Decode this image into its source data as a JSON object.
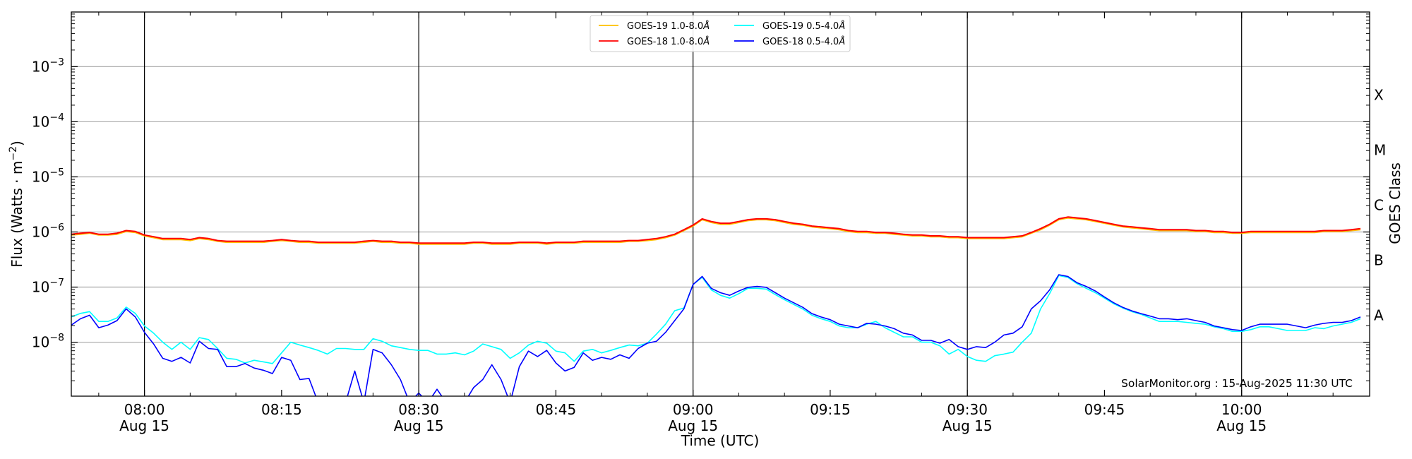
{
  "chart_data": {
    "type": "line",
    "title": "",
    "xlabel": "Time (UTC)",
    "ylabel": "Flux (Watts · m",
    "ylabel_sup": "−2",
    "ylabel_close": ")",
    "right_label": "GOES Class",
    "yscale": "log",
    "ylim": [
      1.05e-09,
      0.0098
    ],
    "xlim": [
      "07:52",
      "10:14"
    ],
    "grid": "horizontal at decades; vertical lines at 30-minute marks",
    "legend_placement": "top-center",
    "y_ticks": [
      {
        "value": 0.001,
        "base": "10",
        "exp": "−3"
      },
      {
        "value": 0.0001,
        "base": "10",
        "exp": "−4"
      },
      {
        "value": 1e-05,
        "base": "10",
        "exp": "−5"
      },
      {
        "value": 1e-06,
        "base": "10",
        "exp": "−6"
      },
      {
        "value": 1e-07,
        "base": "10",
        "exp": "−7"
      },
      {
        "value": 1e-08,
        "base": "10",
        "exp": "−8"
      }
    ],
    "x_ticks": [
      {
        "time": "08:00",
        "date": "Aug 15"
      },
      {
        "time": "08:15",
        "date": ""
      },
      {
        "time": "08:30",
        "date": "Aug 15"
      },
      {
        "time": "08:45",
        "date": ""
      },
      {
        "time": "09:00",
        "date": "Aug 15"
      },
      {
        "time": "09:15",
        "date": ""
      },
      {
        "time": "09:30",
        "date": "Aug 15"
      },
      {
        "time": "09:45",
        "date": ""
      },
      {
        "time": "10:00",
        "date": "Aug 15"
      }
    ],
    "goes_classes": [
      {
        "label": "X",
        "value": 0.0001
      },
      {
        "label": "M",
        "value": 1e-05
      },
      {
        "label": "C",
        "value": 1e-06
      },
      {
        "label": "B",
        "value": 1e-07
      },
      {
        "label": "A",
        "value": 1e-08
      }
    ],
    "annotation": "SolarMonitor.org : 15-Aug-2025 11:30 UTC",
    "x": [
      "07:52",
      "07:53",
      "07:54",
      "07:55",
      "07:56",
      "07:57",
      "07:58",
      "07:59",
      "08:00",
      "08:01",
      "08:02",
      "08:03",
      "08:04",
      "08:05",
      "08:06",
      "08:07",
      "08:08",
      "08:09",
      "08:10",
      "08:11",
      "08:12",
      "08:13",
      "08:14",
      "08:15",
      "08:16",
      "08:17",
      "08:18",
      "08:19",
      "08:20",
      "08:21",
      "08:22",
      "08:23",
      "08:24",
      "08:25",
      "08:26",
      "08:27",
      "08:28",
      "08:29",
      "08:30",
      "08:31",
      "08:32",
      "08:33",
      "08:34",
      "08:35",
      "08:36",
      "08:37",
      "08:38",
      "08:39",
      "08:40",
      "08:41",
      "08:42",
      "08:43",
      "08:44",
      "08:45",
      "08:46",
      "08:47",
      "08:48",
      "08:49",
      "08:50",
      "08:51",
      "08:52",
      "08:53",
      "08:54",
      "08:55",
      "08:56",
      "08:57",
      "08:58",
      "08:59",
      "09:00",
      "09:01",
      "09:02",
      "09:03",
      "09:04",
      "09:05",
      "09:06",
      "09:07",
      "09:08",
      "09:09",
      "09:10",
      "09:11",
      "09:12",
      "09:13",
      "09:14",
      "09:15",
      "09:16",
      "09:17",
      "09:18",
      "09:19",
      "09:20",
      "09:21",
      "09:22",
      "09:23",
      "09:24",
      "09:25",
      "09:26",
      "09:27",
      "09:28",
      "09:29",
      "09:30",
      "09:31",
      "09:32",
      "09:33",
      "09:34",
      "09:35",
      "09:36",
      "09:37",
      "09:38",
      "09:39",
      "09:40",
      "09:41",
      "09:42",
      "09:43",
      "09:44",
      "09:45",
      "09:46",
      "09:47",
      "09:48",
      "09:49",
      "09:50",
      "09:51",
      "09:52",
      "09:53",
      "09:54",
      "09:55",
      "09:56",
      "09:57",
      "09:58",
      "09:59",
      "10:00",
      "10:01",
      "10:02",
      "10:03",
      "10:04",
      "10:05",
      "10:06",
      "10:07",
      "10:08",
      "10:09",
      "10:10",
      "10:11",
      "10:12",
      "10:13"
    ],
    "series": [
      {
        "name": "GOES-19 1.0-8.0Å",
        "label_main": "GOES-19 1.0-8.0",
        "label_unit": "Å",
        "color": "#ffc000",
        "values": [
          8.8e-07,
          9.1e-07,
          9.5e-07,
          8.8e-07,
          8.8e-07,
          9.1e-07,
          1.02e-06,
          9.8e-07,
          8.5e-07,
          7.9e-07,
          7.3e-07,
          7.3e-07,
          7.3e-07,
          7e-07,
          7.6e-07,
          7.3e-07,
          6.8e-07,
          6.5e-07,
          6.5e-07,
          6.5e-07,
          6.5e-07,
          6.5e-07,
          6.8e-07,
          7e-07,
          6.8e-07,
          6.5e-07,
          6.5e-07,
          6.3e-07,
          6.3e-07,
          6.3e-07,
          6.3e-07,
          6.3e-07,
          6.5e-07,
          6.8e-07,
          6.5e-07,
          6.5e-07,
          6.3e-07,
          6.3e-07,
          6e-07,
          6e-07,
          6e-07,
          6e-07,
          6e-07,
          6e-07,
          6.3e-07,
          6.3e-07,
          6e-07,
          6e-07,
          6e-07,
          6.3e-07,
          6.3e-07,
          6.3e-07,
          6e-07,
          6.3e-07,
          6.3e-07,
          6.3e-07,
          6.5e-07,
          6.5e-07,
          6.5e-07,
          6.5e-07,
          6.5e-07,
          6.8e-07,
          6.8e-07,
          7e-07,
          7.3e-07,
          7.9e-07,
          8.8e-07,
          1.06e-06,
          1.28e-06,
          1.67e-06,
          1.49e-06,
          1.38e-06,
          1.38e-06,
          1.49e-06,
          1.61e-06,
          1.67e-06,
          1.67e-06,
          1.61e-06,
          1.49e-06,
          1.38e-06,
          1.33e-06,
          1.24e-06,
          1.19e-06,
          1.15e-06,
          1.1e-06,
          1.02e-06,
          9.8e-07,
          9.8e-07,
          9.5e-07,
          9.5e-07,
          9.1e-07,
          8.8e-07,
          8.5e-07,
          8.5e-07,
          8.2e-07,
          8.2e-07,
          7.9e-07,
          7.9e-07,
          7.6e-07,
          7.6e-07,
          7.6e-07,
          7.6e-07,
          7.6e-07,
          7.9e-07,
          8.2e-07,
          9.5e-07,
          1.1e-06,
          1.33e-06,
          1.67e-06,
          1.8e-06,
          1.73e-06,
          1.67e-06,
          1.55e-06,
          1.44e-06,
          1.33e-06,
          1.24e-06,
          1.19e-06,
          1.15e-06,
          1.1e-06,
          1.06e-06,
          1.06e-06,
          1.06e-06,
          1.06e-06,
          1.02e-06,
          1.02e-06,
          9.8e-07,
          9.8e-07,
          9.5e-07,
          9.5e-07,
          9.8e-07,
          9.8e-07,
          9.8e-07,
          9.8e-07,
          9.8e-07,
          9.8e-07,
          9.8e-07,
          9.8e-07,
          1.02e-06,
          1.02e-06,
          1.02e-06,
          1.06e-06,
          1.1e-06
        ]
      },
      {
        "name": "GOES-18 1.0-8.0Å",
        "label_main": "GOES-18 1.0-8.0",
        "label_unit": "Å",
        "color": "#ff0000",
        "values": [
          9.1e-07,
          9.5e-07,
          9.8e-07,
          9.1e-07,
          9.1e-07,
          9.5e-07,
          1.06e-06,
          1.02e-06,
          8.8e-07,
          8.2e-07,
          7.6e-07,
          7.6e-07,
          7.6e-07,
          7.3e-07,
          7.9e-07,
          7.6e-07,
          7e-07,
          6.8e-07,
          6.8e-07,
          6.8e-07,
          6.8e-07,
          6.8e-07,
          7e-07,
          7.3e-07,
          7e-07,
          6.8e-07,
          6.8e-07,
          6.5e-07,
          6.5e-07,
          6.5e-07,
          6.5e-07,
          6.5e-07,
          6.8e-07,
          7e-07,
          6.8e-07,
          6.8e-07,
          6.5e-07,
          6.5e-07,
          6.3e-07,
          6.3e-07,
          6.3e-07,
          6.3e-07,
          6.3e-07,
          6.3e-07,
          6.5e-07,
          6.5e-07,
          6.3e-07,
          6.3e-07,
          6.3e-07,
          6.5e-07,
          6.5e-07,
          6.5e-07,
          6.3e-07,
          6.5e-07,
          6.5e-07,
          6.5e-07,
          6.8e-07,
          6.8e-07,
          6.8e-07,
          6.8e-07,
          6.8e-07,
          7e-07,
          7e-07,
          7.3e-07,
          7.6e-07,
          8.2e-07,
          9.1e-07,
          1.1e-06,
          1.33e-06,
          1.73e-06,
          1.55e-06,
          1.44e-06,
          1.44e-06,
          1.55e-06,
          1.67e-06,
          1.73e-06,
          1.73e-06,
          1.67e-06,
          1.55e-06,
          1.44e-06,
          1.38e-06,
          1.28e-06,
          1.24e-06,
          1.19e-06,
          1.15e-06,
          1.06e-06,
          1.02e-06,
          1.02e-06,
          9.8e-07,
          9.8e-07,
          9.5e-07,
          9.1e-07,
          8.8e-07,
          8.8e-07,
          8.5e-07,
          8.5e-07,
          8.2e-07,
          8.2e-07,
          7.9e-07,
          7.9e-07,
          7.9e-07,
          7.9e-07,
          7.9e-07,
          8.2e-07,
          8.5e-07,
          9.8e-07,
          1.15e-06,
          1.38e-06,
          1.73e-06,
          1.87e-06,
          1.8e-06,
          1.73e-06,
          1.61e-06,
          1.49e-06,
          1.38e-06,
          1.28e-06,
          1.24e-06,
          1.19e-06,
          1.15e-06,
          1.1e-06,
          1.1e-06,
          1.1e-06,
          1.1e-06,
          1.06e-06,
          1.06e-06,
          1.02e-06,
          1.02e-06,
          9.8e-07,
          9.8e-07,
          1.02e-06,
          1.02e-06,
          1.02e-06,
          1.02e-06,
          1.02e-06,
          1.02e-06,
          1.02e-06,
          1.02e-06,
          1.06e-06,
          1.06e-06,
          1.06e-06,
          1.1e-06,
          1.15e-06
        ]
      },
      {
        "name": "GOES-19 0.5-4.0Å",
        "label_main": "GOES-19 0.5-4.0",
        "label_unit": "Å",
        "color": "#00ffff",
        "values": [
          2.87e-08,
          3.33e-08,
          3.59e-08,
          2.38e-08,
          2.38e-08,
          2.76e-08,
          4.33e-08,
          3.33e-08,
          1.97e-08,
          1.46e-08,
          1e-08,
          7.4e-09,
          1e-08,
          7.4e-09,
          1.21e-08,
          1.12e-08,
          7.7e-09,
          5.1e-09,
          4.9e-09,
          4.2e-09,
          4.7e-09,
          4.4e-09,
          4.1e-09,
          6.4e-09,
          1e-08,
          8.9e-09,
          8e-09,
          7.1e-09,
          6.1e-09,
          7.7e-09,
          7.7e-09,
          7.4e-09,
          7.4e-09,
          1.16e-08,
          1.04e-08,
          8.6e-09,
          8e-09,
          7.4e-09,
          7.1e-09,
          7.1e-09,
          6.1e-09,
          6.1e-09,
          6.4e-09,
          5.9e-09,
          6.9e-09,
          9.3e-09,
          8.3e-09,
          7.4e-09,
          5.1e-09,
          6.4e-09,
          8.9e-09,
          1.04e-08,
          9.6e-09,
          6.9e-09,
          6.4e-09,
          4.5e-09,
          6.9e-09,
          7.4e-09,
          6.4e-09,
          7.1e-09,
          8e-09,
          8.9e-09,
          8.6e-09,
          9.6e-09,
          1.4e-08,
          2.12e-08,
          3.73e-08,
          4.17e-08,
          1.11e-07,
          1.5e-07,
          8.9e-08,
          7.1e-08,
          6.3e-08,
          7.6e-08,
          9.5e-08,
          9.5e-08,
          9.2e-08,
          7.3e-08,
          5.9e-08,
          4.85e-08,
          4e-08,
          3.09e-08,
          2.66e-08,
          2.38e-08,
          1.97e-08,
          1.83e-08,
          1.83e-08,
          2.12e-08,
          2.38e-08,
          1.83e-08,
          1.51e-08,
          1.25e-08,
          1.25e-08,
          1e-08,
          1e-08,
          8.6e-09,
          6.1e-09,
          7.4e-09,
          5.5e-09,
          4.7e-09,
          4.5e-09,
          5.7e-09,
          6.1e-09,
          6.6e-09,
          1e-08,
          1.46e-08,
          4e-08,
          7.6e-08,
          1.62e-07,
          1.5e-07,
          1.15e-07,
          9.5e-08,
          7.9e-08,
          6.3e-08,
          5e-08,
          4.17e-08,
          3.59e-08,
          3.21e-08,
          2.76e-08,
          2.38e-08,
          2.38e-08,
          2.38e-08,
          2.29e-08,
          2.2e-08,
          2.12e-08,
          1.9e-08,
          1.76e-08,
          1.57e-08,
          1.57e-08,
          1.69e-08,
          1.9e-08,
          1.9e-08,
          1.76e-08,
          1.63e-08,
          1.63e-08,
          1.63e-08,
          1.83e-08,
          1.76e-08,
          1.97e-08,
          2.12e-08,
          2.29e-08,
          2.66e-08
        ]
      },
      {
        "name": "GOES-18 0.5-4.0Å",
        "label_main": "GOES-18 0.5-4.0",
        "label_unit": "Å",
        "color": "#0000ff",
        "values": [
          2.04e-08,
          2.66e-08,
          3.09e-08,
          1.83e-08,
          2.04e-08,
          2.47e-08,
          4.02e-08,
          2.87e-08,
          1.51e-08,
          9.3e-09,
          5.1e-09,
          4.5e-09,
          5.3e-09,
          4.2e-09,
          1.04e-08,
          7.7e-09,
          7.4e-09,
          3.6e-09,
          3.6e-09,
          4.1e-09,
          3.4e-09,
          3.1e-09,
          2.7e-09,
          5.3e-09,
          4.7e-09,
          2.1e-09,
          2.2e-09,
          8e-10,
          8e-10,
          8e-10,
          8e-10,
          3e-09,
          8e-10,
          7.4e-09,
          6.4e-09,
          3.9e-09,
          2.1e-09,
          8e-10,
          1.2e-09,
          8e-10,
          1.4e-09,
          8e-10,
          8e-10,
          8e-10,
          1.5e-09,
          2.1e-09,
          3.9e-09,
          2.1e-09,
          8e-10,
          3.6e-09,
          6.9e-09,
          5.5e-09,
          7.1e-09,
          4.2e-09,
          3e-09,
          3.5e-09,
          6.4e-09,
          4.7e-09,
          5.3e-09,
          4.9e-09,
          5.9e-09,
          5.1e-09,
          7.7e-09,
          9.6e-09,
          1.04e-08,
          1.51e-08,
          2.47e-08,
          4.02e-08,
          1.11e-07,
          1.56e-07,
          9.5e-08,
          7.9e-08,
          7.1e-08,
          8.5e-08,
          9.9e-08,
          1.03e-07,
          9.9e-08,
          7.9e-08,
          6.3e-08,
          5.2e-08,
          4.3e-08,
          3.3e-08,
          2.87e-08,
          2.56e-08,
          2.12e-08,
          1.97e-08,
          1.83e-08,
          2.2e-08,
          2.12e-08,
          1.97e-08,
          1.76e-08,
          1.46e-08,
          1.35e-08,
          1.08e-08,
          1.08e-08,
          9.6e-09,
          1.12e-08,
          8.3e-09,
          7.4e-09,
          8.3e-09,
          8e-09,
          1e-08,
          1.35e-08,
          1.46e-08,
          1.9e-08,
          4.02e-08,
          5.64e-08,
          8.9e-08,
          1.68e-07,
          1.56e-07,
          1.2e-07,
          1.03e-07,
          8.5e-08,
          6.6e-08,
          5.2e-08,
          4.3e-08,
          3.7e-08,
          3.3e-08,
          2.98e-08,
          2.66e-08,
          2.66e-08,
          2.56e-08,
          2.66e-08,
          2.47e-08,
          2.29e-08,
          1.97e-08,
          1.83e-08,
          1.69e-08,
          1.63e-08,
          1.9e-08,
          2.12e-08,
          2.12e-08,
          2.12e-08,
          2.12e-08,
          1.97e-08,
          1.83e-08,
          2.04e-08,
          2.2e-08,
          2.29e-08,
          2.29e-08,
          2.47e-08,
          2.87e-08
        ]
      }
    ]
  }
}
